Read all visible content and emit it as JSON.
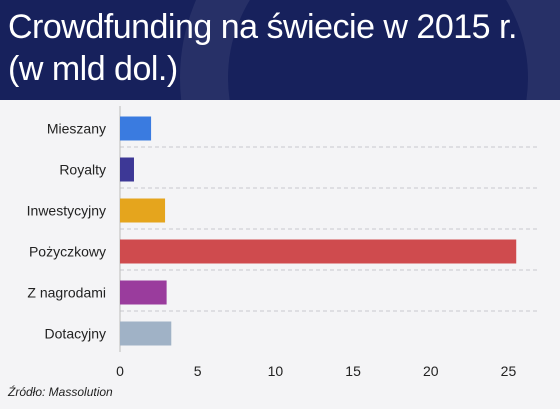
{
  "title": "Crowdfunding na świecie w 2015 r. (w mld dol.)",
  "source": "Źródło: Massolution",
  "colors": {
    "header_bg": "#17215c",
    "plot_bg": "#f4f4f6"
  },
  "chart_data": {
    "type": "bar",
    "orientation": "horizontal",
    "title": "Crowdfunding na świecie w 2015 r. (w mld dol.)",
    "xlabel": "",
    "ylabel": "",
    "categories": [
      "Mieszany",
      "Royalty",
      "Inwestycyjny",
      "Pożyczkowy",
      "Z nagrodami",
      "Dotacyjny"
    ],
    "values": [
      2.0,
      0.9,
      2.9,
      25.5,
      3.0,
      3.3
    ],
    "bar_colors": [
      "#3a7be0",
      "#3d3896",
      "#e5a51d",
      "#cf4b4e",
      "#9a3c9d",
      "#a0b2c6"
    ],
    "xlim": [
      0,
      26
    ],
    "xticks": [
      0,
      5,
      10,
      15,
      20,
      25
    ],
    "grid": "horizontal dashed separators",
    "legend": "none"
  }
}
